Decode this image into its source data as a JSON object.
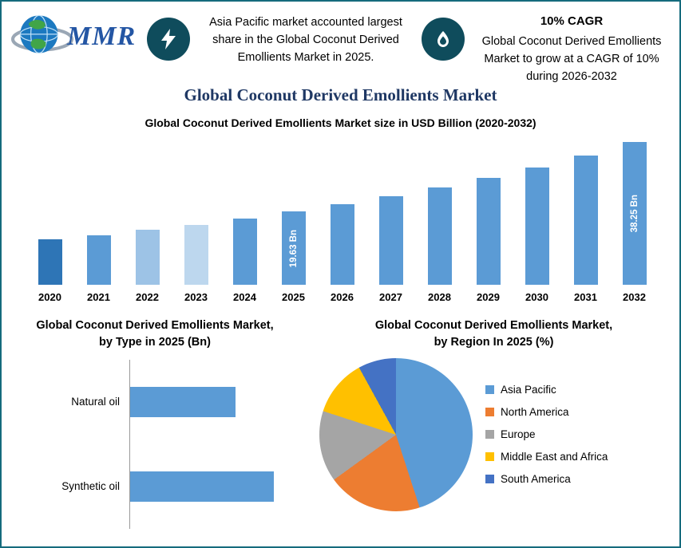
{
  "header": {
    "logo_text": "MMR",
    "callout1": {
      "text": "Asia Pacific market accounted largest share in the Global Coconut Derived Emollients Market in 2025."
    },
    "callout2": {
      "title": "10% CAGR",
      "text": "Global Coconut Derived Emollients Market to grow at a CAGR of 10% during 2026-2032"
    }
  },
  "title": "Global Coconut Derived Emollients Market",
  "colors": {
    "border_teal": "#156b7d",
    "icon_circle": "#0f4c5c",
    "title_blue": "#1f3864",
    "bar_blue": "#5b9bd5"
  },
  "chart_data": [
    {
      "id": "market_size",
      "type": "bar",
      "title": "Global Coconut Derived Emollients Market size in USD Billion (2020-2032)",
      "categories": [
        "2020",
        "2021",
        "2022",
        "2023",
        "2024",
        "2025",
        "2026",
        "2027",
        "2028",
        "2029",
        "2030",
        "2031",
        "2032"
      ],
      "values": [
        12.2,
        13.4,
        14.8,
        16.2,
        17.8,
        19.63,
        21.6,
        23.7,
        26.1,
        28.7,
        31.6,
        34.8,
        38.25
      ],
      "bar_colors": [
        "#2e75b6",
        "#5b9bd5",
        "#9dc3e6",
        "#bdd7ee",
        "#5b9bd5",
        "#5b9bd5",
        "#5b9bd5",
        "#5b9bd5",
        "#5b9bd5",
        "#5b9bd5",
        "#5b9bd5",
        "#5b9bd5",
        "#5b9bd5"
      ],
      "data_labels": {
        "2025": "19.63 Bn",
        "2032": "38.25 Bn"
      },
      "ylim": [
        0,
        40
      ],
      "grid": false,
      "legend": "none"
    },
    {
      "id": "by_type",
      "type": "bar",
      "orientation": "horizontal",
      "title": "Global Coconut Derived Emollients Market, by Type in 2025 (Bn)",
      "categories": [
        "Natural oil",
        "Synthetic oil"
      ],
      "values": [
        8.3,
        11.3
      ],
      "xlim": [
        0,
        14
      ],
      "bar_color": "#5b9bd5",
      "grid": false
    },
    {
      "id": "by_region",
      "type": "pie",
      "title": "Global Coconut Derived Emollients Market, by Region In 2025 (%)",
      "labels": [
        "Asia Pacific",
        "North America",
        "Europe",
        "Middle East and Africa",
        "South America"
      ],
      "values": [
        45,
        20,
        15,
        12,
        8
      ],
      "colors": [
        "#5b9bd5",
        "#ed7d31",
        "#a5a5a5",
        "#ffc000",
        "#4472c4"
      ],
      "legend_position": "right"
    }
  ]
}
